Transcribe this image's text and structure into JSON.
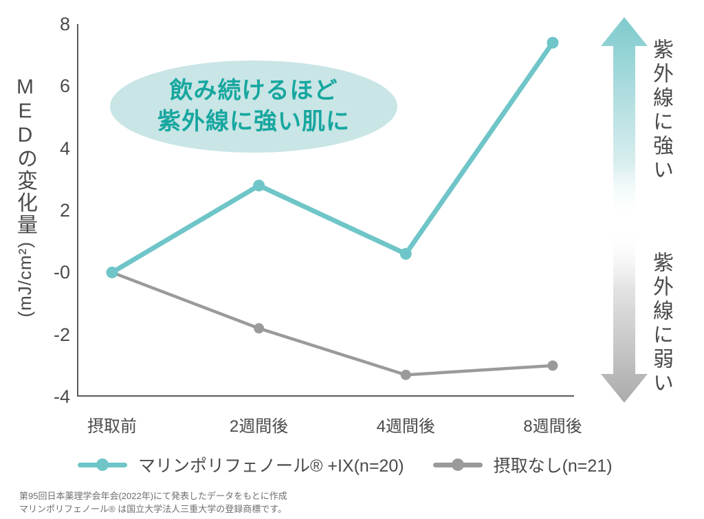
{
  "colors": {
    "teal_line": "#6FC5C8",
    "gray_line": "#9A9A9A",
    "axis": "#595959",
    "text_dark": "#4A4A4A",
    "bubble_fill": "#C9E5E6",
    "bubble_text": "#17A79F",
    "footer_text": "#6E6E6E",
    "arrow_up_color": "#7FCACD",
    "arrow_down_color": "#ABABAB"
  },
  "chart_data": {
    "type": "line",
    "categories": [
      "摂取前",
      "2週間後",
      "4週間後",
      "8週間後"
    ],
    "series": [
      {
        "name": "マリンポリフェノール® +IX(n=20)",
        "values": [
          0,
          2.8,
          0.6,
          7.4
        ],
        "color": "#6FC5C8"
      },
      {
        "name": "摂取なし(n=21)",
        "values": [
          0,
          -1.8,
          -3.3,
          -3.0
        ],
        "color": "#9A9A9A"
      }
    ],
    "title": "",
    "xlabel": "",
    "ylabel": "MEDの変化量(mJ/cm²)",
    "y_axis": {
      "title_main": "MEDの変化量",
      "title_unit": "(mJ/cm²)"
    },
    "ylim": [
      -4,
      8
    ],
    "yticks": [
      {
        "label": "8",
        "value": 8
      },
      {
        "label": "6",
        "value": 6
      },
      {
        "label": "4",
        "value": 4
      },
      {
        "label": "2",
        "value": 2
      },
      {
        "label": "-0",
        "value": 0
      },
      {
        "label": "-2",
        "value": -2
      },
      {
        "label": "-4",
        "value": -4
      }
    ],
    "grid": false,
    "legend_position": "bottom"
  },
  "annotation": {
    "line1": "飲み続けるほど",
    "line2": "紫外線に強い肌に"
  },
  "side_labels": {
    "strong": "紫外線に強い",
    "weak": "紫外線に弱い"
  },
  "footer": {
    "line1": "第95回日本薬理学会年会(2022年)にて発表したデータをもとに作成",
    "line2": "マリンポリフェノール® は国立大学法人三重大学の登録商標です。"
  }
}
